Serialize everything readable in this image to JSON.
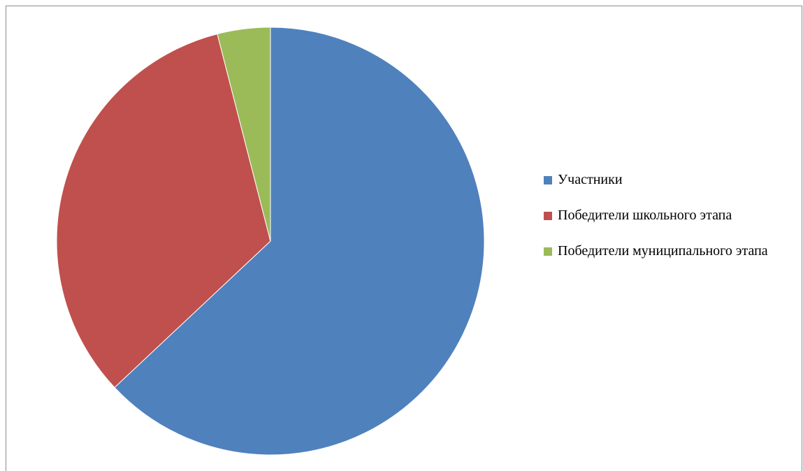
{
  "chart_data": {
    "type": "pie",
    "title": "",
    "categories": [
      "Участники",
      "Победители школьного этапа",
      "Победители муниципального этапа"
    ],
    "values": [
      63,
      33,
      4
    ],
    "colors": [
      "#4F81BD",
      "#C0504D",
      "#9BBB59"
    ],
    "legend_position": "right",
    "start_angle": "top",
    "direction": "clockwise"
  }
}
